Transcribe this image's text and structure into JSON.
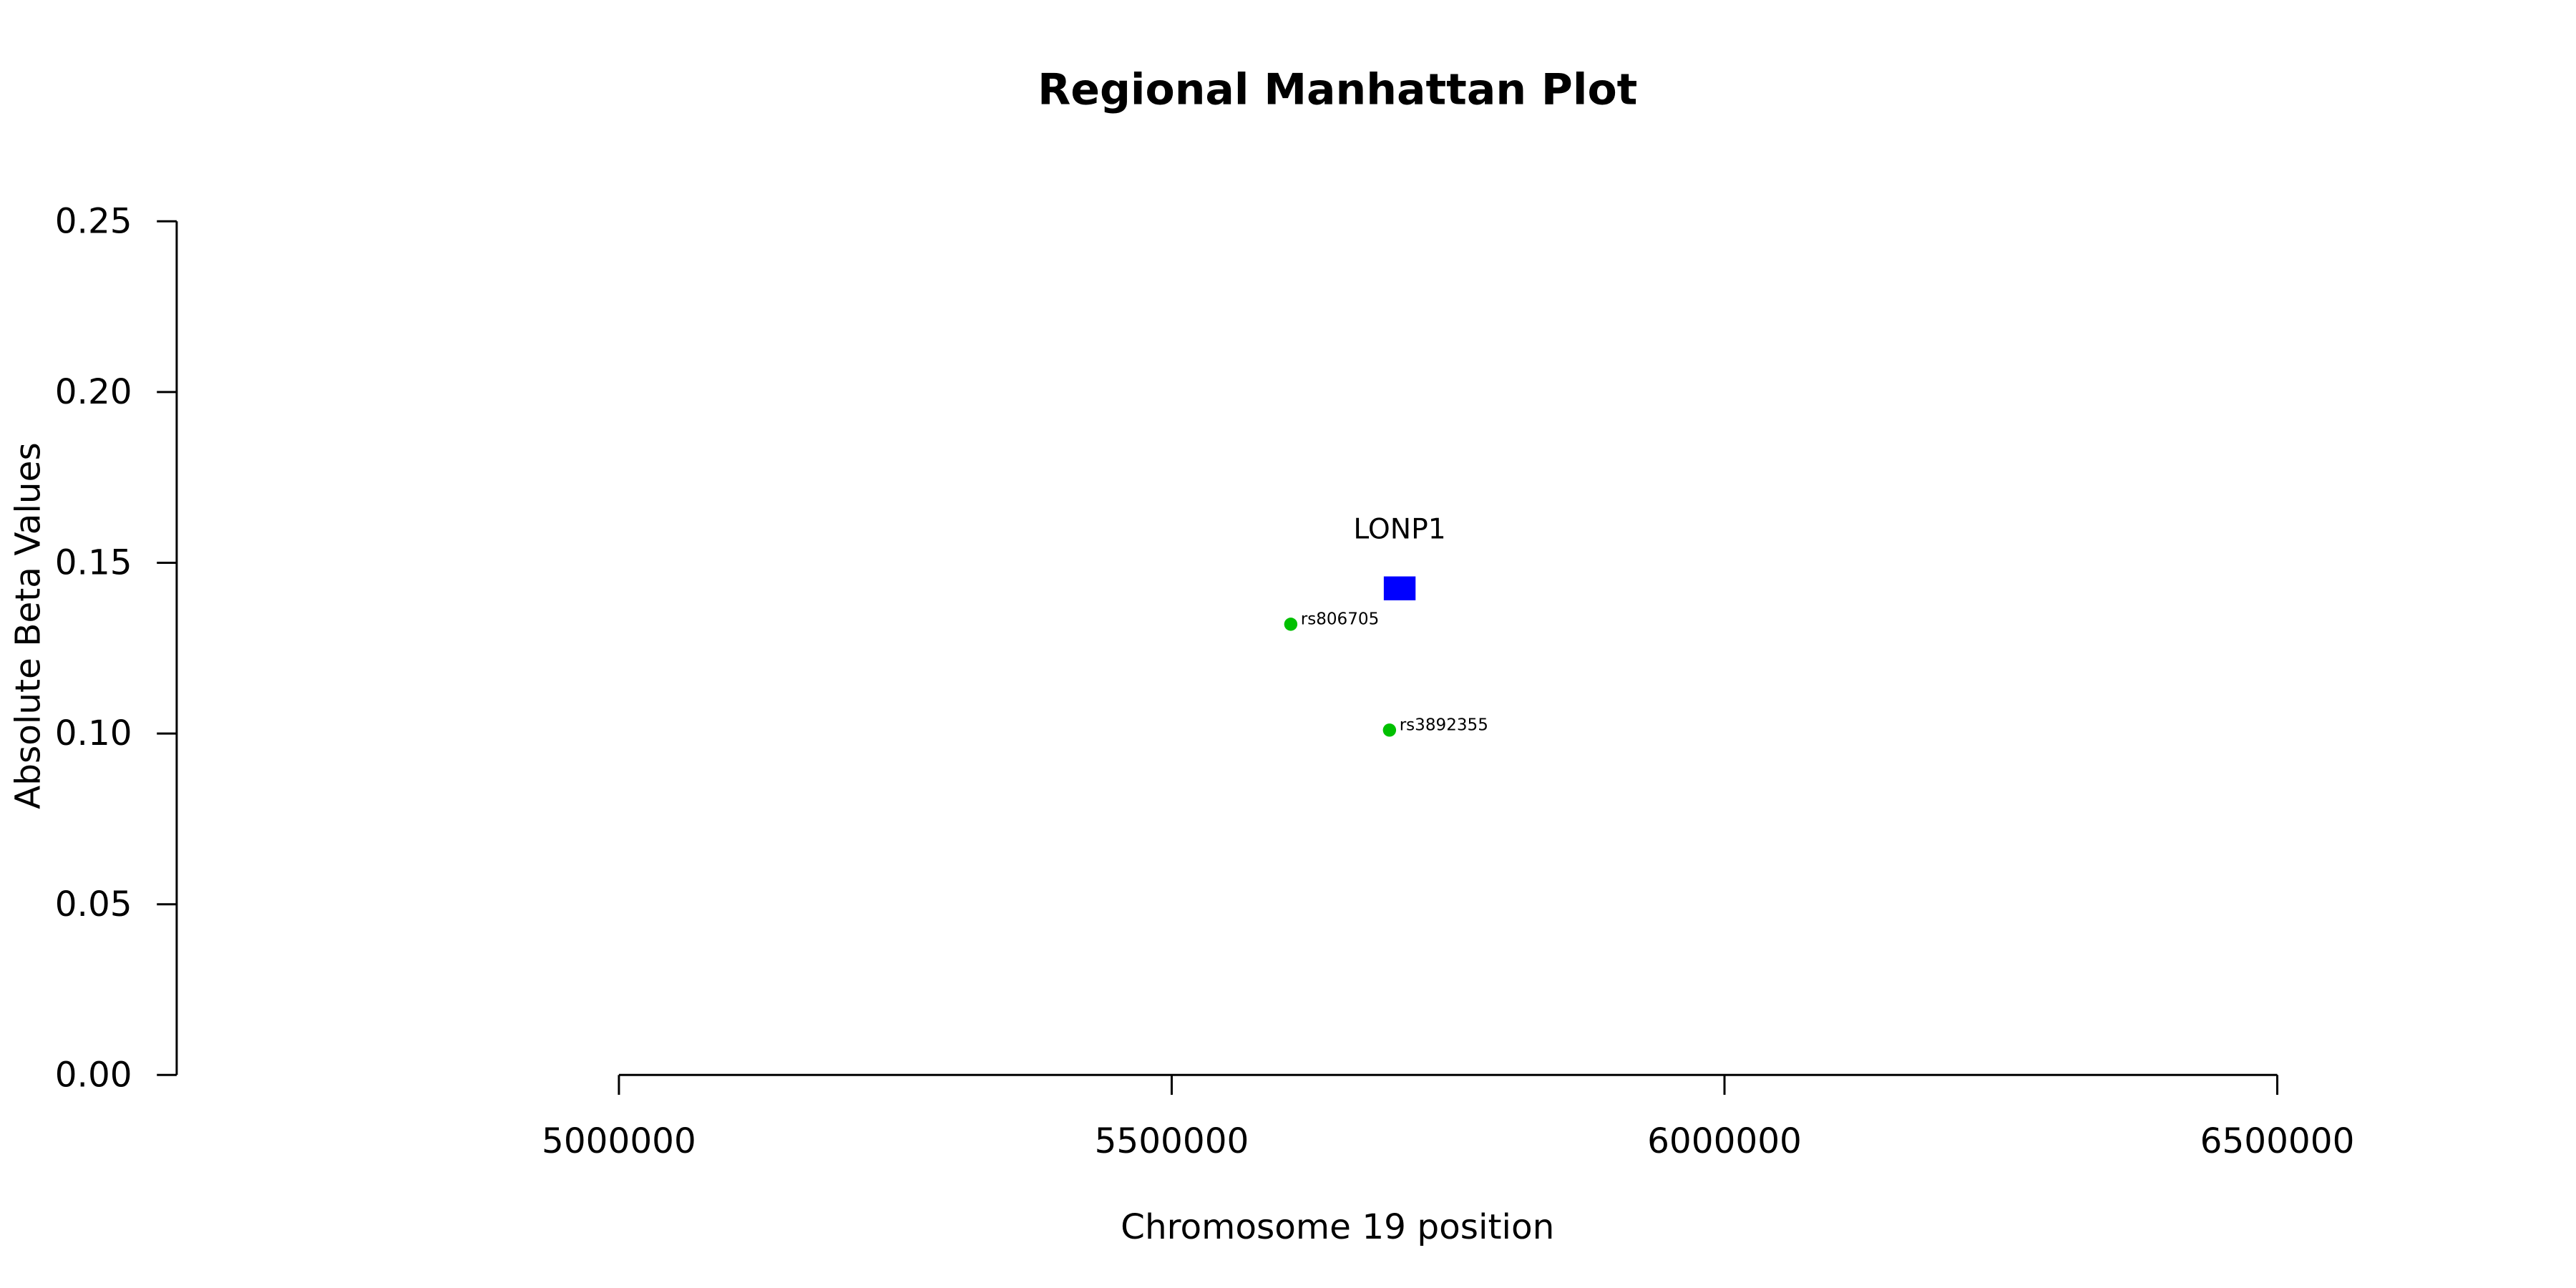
{
  "chart_data": {
    "type": "scatter",
    "title": "Regional Manhattan Plot",
    "x_label": "Chromosome 19 position",
    "y_label": "Absolute Beta Values",
    "xlim": [
      4600000,
      6700000
    ],
    "ylim": [
      0,
      0.25
    ],
    "xticks": [
      5000000,
      5500000,
      6000000,
      6500000
    ],
    "yticks": [
      {
        "value": 0,
        "label": "0.00"
      },
      0.05,
      {
        "value": 0.1,
        "label": "0.10"
      },
      0.15,
      {
        "value": 0.2,
        "label": "0.20"
      },
      0.25
    ],
    "points": {
      "color": "#00c000",
      "x": [
        5607700,
        5697000
      ],
      "y": [
        0.132,
        0.101
      ],
      "labels": [
        "rs806705",
        "rs3892355"
      ]
    },
    "genes": [
      {
        "name": "LONP1",
        "start": 5691834,
        "end": 5720572,
        "ybottom": 0.139,
        "ytop": 0.146,
        "color": "#0000ff"
      }
    ]
  }
}
